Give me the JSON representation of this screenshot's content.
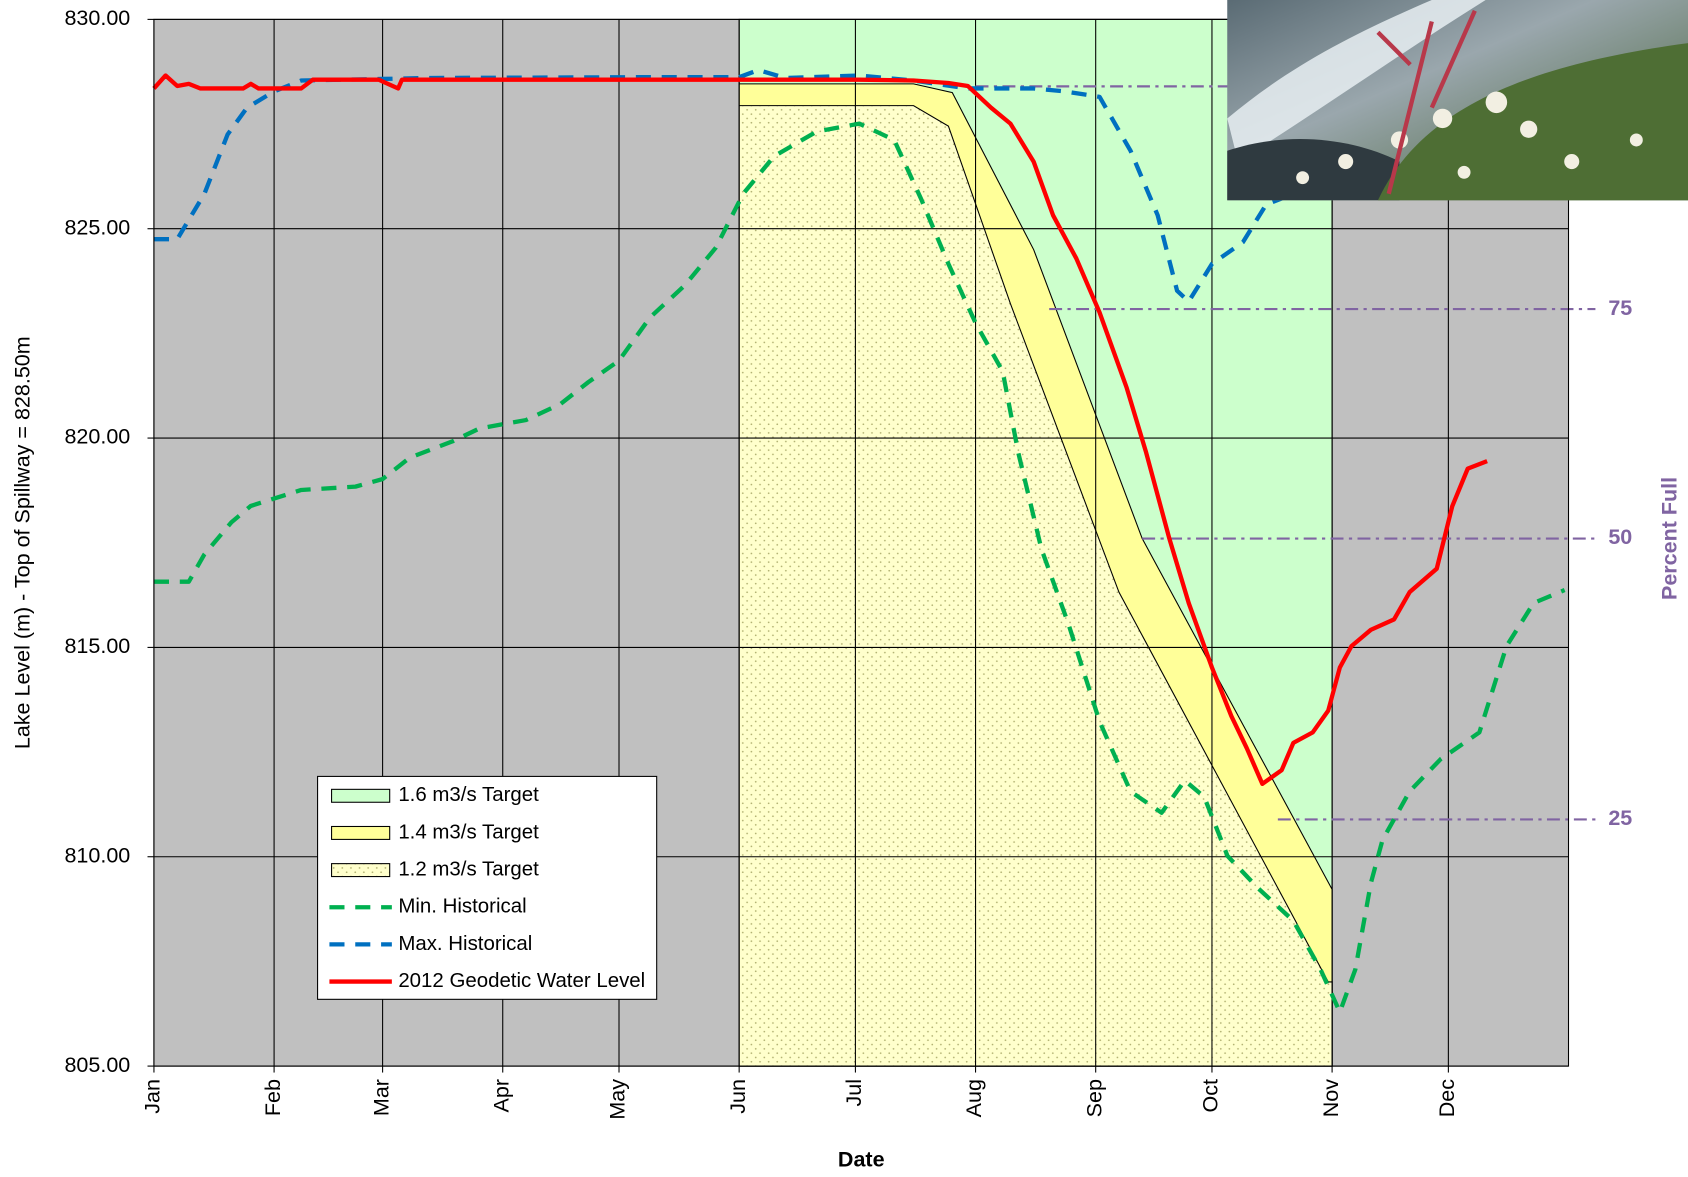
{
  "chart_data": {
    "type": "line",
    "x_label": "Date",
    "y_label": "Lake Level (m) - Top of Spillway = 828.50m",
    "y2_label": "Percent Full",
    "xlim": [
      1,
      366
    ],
    "ylim": [
      805,
      830
    ],
    "xticks": [
      {
        "value": 1,
        "label": "Jan"
      },
      {
        "value": 32,
        "label": "Feb"
      },
      {
        "value": 60,
        "label": "Mar"
      },
      {
        "value": 91,
        "label": "Apr"
      },
      {
        "value": 121,
        "label": "May"
      },
      {
        "value": 152,
        "label": "Jun"
      },
      {
        "value": 182,
        "label": "Jul"
      },
      {
        "value": 213,
        "label": "Aug"
      },
      {
        "value": 244,
        "label": "Sep"
      },
      {
        "value": 274,
        "label": "Oct"
      },
      {
        "value": 305,
        "label": "Nov"
      },
      {
        "value": 335,
        "label": "Dec"
      }
    ],
    "yticks": [
      {
        "value": 805,
        "label": "805.00"
      },
      {
        "value": 810,
        "label": "810.00"
      },
      {
        "value": 815,
        "label": "815.00"
      },
      {
        "value": 820,
        "label": "820.00"
      },
      {
        "value": 825,
        "label": "825.00"
      },
      {
        "value": 830,
        "label": "830.00"
      }
    ],
    "grid": true,
    "percent_lines": [
      {
        "level": 828.4,
        "from": 213
      },
      {
        "value": 75,
        "level": 823.08,
        "from": 232
      },
      {
        "value": 50,
        "level": 817.6,
        "from": 256
      },
      {
        "value": 25,
        "level": 810.89,
        "from": 291
      }
    ],
    "series": [
      {
        "name": "1.6 m3/s Target",
        "kind": "area",
        "color": "#ccffcc",
        "x": [
          152,
          305
        ],
        "values": [
          830,
          830
        ]
      },
      {
        "name": "1.4 m3/s Target",
        "kind": "area",
        "color": "#ffff99",
        "x": [
          152,
          197,
          207,
          228,
          256,
          305
        ],
        "values": [
          828.46,
          828.46,
          828.25,
          824.5,
          817.6,
          809.22
        ]
      },
      {
        "name": "1.2 m3/s Target",
        "kind": "area",
        "color": "#ffffcc",
        "pattern": "dots",
        "x": [
          152,
          197,
          206,
          222,
          250,
          304,
          305
        ],
        "values": [
          827.94,
          827.94,
          827.45,
          823.21,
          816.32,
          807.01,
          807.01
        ]
      },
      {
        "name": "Min. Historical",
        "kind": "line",
        "dashed": true,
        "color": "#00b050",
        "x": [
          1,
          10,
          14,
          21,
          26,
          39,
          53,
          60,
          67,
          78,
          85,
          97,
          106,
          113,
          121,
          129,
          138,
          146,
          153,
          161,
          172,
          183,
          192,
          199,
          206,
          213,
          220,
          224,
          230,
          237,
          245,
          253,
          261,
          267,
          272,
          278,
          286,
          295,
          302,
          307,
          311,
          315,
          318,
          325,
          333,
          343,
          350,
          357,
          365
        ],
        "values": [
          816.57,
          816.57,
          817.22,
          817.99,
          818.38,
          818.76,
          818.84,
          819.02,
          819.53,
          819.92,
          820.23,
          820.43,
          820.82,
          821.33,
          821.85,
          822.88,
          823.65,
          824.55,
          825.83,
          826.73,
          827.32,
          827.51,
          827.12,
          825.7,
          824.16,
          822.75,
          821.59,
          819.66,
          817.35,
          815.55,
          813.23,
          811.56,
          811.05,
          811.82,
          811.43,
          810.02,
          809.24,
          808.47,
          807.31,
          806.29,
          807.31,
          809.37,
          810.4,
          811.56,
          812.33,
          812.97,
          815.03,
          816.06,
          816.37
        ]
      },
      {
        "name": "Max. Historical",
        "kind": "line",
        "dashed": true,
        "color": "#0070c0",
        "x": [
          1,
          7,
          14,
          20,
          25,
          32,
          39,
          72,
          128,
          152,
          157,
          164,
          183,
          197,
          211,
          228,
          236,
          245,
          253,
          260,
          265,
          268,
          274,
          282,
          288,
          295
        ],
        "values": [
          824.75,
          824.75,
          825.83,
          827.25,
          827.89,
          828.28,
          828.54,
          828.6,
          828.62,
          828.62,
          828.79,
          828.6,
          828.66,
          828.54,
          828.35,
          828.35,
          828.28,
          828.15,
          826.86,
          825.32,
          823.52,
          823.26,
          824.16,
          824.68,
          825.58,
          825.83
        ]
      },
      {
        "name": "2012 Geodetic Water Level",
        "kind": "line",
        "dashed": false,
        "color": "#ff0000",
        "x": [
          1,
          4,
          7,
          10,
          13,
          24,
          26,
          28,
          39,
          42,
          59,
          64,
          65,
          153,
          183,
          197,
          206,
          211,
          217,
          222,
          228,
          233,
          239,
          245,
          252,
          257,
          263,
          268,
          274,
          279,
          283,
          287,
          292,
          295,
          300,
          304,
          307,
          310,
          315,
          321,
          325,
          332,
          336,
          340,
          345
        ],
        "values": [
          828.35,
          828.66,
          828.41,
          828.46,
          828.35,
          828.35,
          828.46,
          828.35,
          828.35,
          828.56,
          828.56,
          828.35,
          828.56,
          828.56,
          828.56,
          828.54,
          828.48,
          828.41,
          827.89,
          827.51,
          826.6,
          825.32,
          824.29,
          823.0,
          821.2,
          819.66,
          817.6,
          816.06,
          814.52,
          813.36,
          812.59,
          811.74,
          812.07,
          812.72,
          812.97,
          813.49,
          814.52,
          815.03,
          815.42,
          815.67,
          816.32,
          816.88,
          818.37,
          819.27,
          819.45
        ]
      }
    ]
  }
}
